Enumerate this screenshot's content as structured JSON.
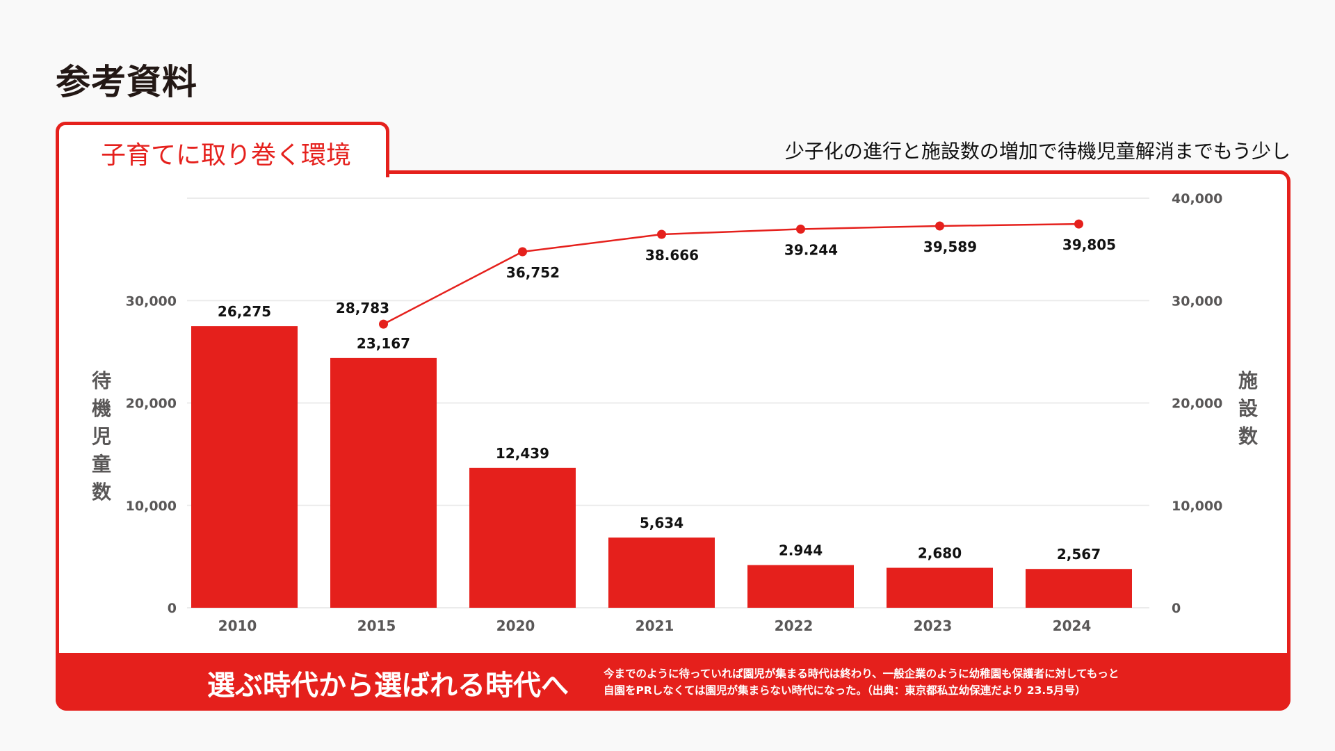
{
  "page": {
    "title": "参考資料",
    "tab_label": "子育てに取り巻く環境",
    "subtitle": "少子化の進行と施設数の増加で待機児童解消までもう少し"
  },
  "footer": {
    "headline": "選ぶ時代から選ばれる時代へ",
    "note_line1": "今までのように待っていれば園児が集まる時代は終わり、一般企業のように幼稚園も保護者に対してもっと",
    "note_line2": "自園をPRしなくては園児が集まらない時代になった。（出典：東京都私立幼保連だより 23.5月号）"
  },
  "colors": {
    "accent": "#e5201c",
    "text": "#231815",
    "axis_text": "#595757",
    "grid": "#ebebeb"
  },
  "chart_data": {
    "type": "bar+line",
    "categories": [
      "2010",
      "2015",
      "2020",
      "2021",
      "2022",
      "2023",
      "2024"
    ],
    "series": [
      {
        "name": "待機児童数",
        "type": "bar",
        "axis": "left",
        "values": [
          26275,
          23167,
          12439,
          5634,
          2944,
          2680,
          2567
        ],
        "labels": [
          "26,275",
          "23,167",
          "12,439",
          "5,634",
          "2.944",
          "2,680",
          "2,567"
        ]
      },
      {
        "name": "施設数",
        "type": "line",
        "axis": "right",
        "values": [
          null,
          28783,
          36752,
          38666,
          39244,
          39589,
          39805
        ],
        "labels": [
          null,
          "28,783",
          "36,752",
          "38.666",
          "39.244",
          "39,589",
          "39,805"
        ]
      }
    ],
    "left_axis": {
      "title": "待機児童数",
      "ylim": [
        0,
        40000
      ],
      "ticks": [
        "0",
        "10,000",
        "20,000",
        "30,000"
      ],
      "tick_values": [
        0,
        10000,
        20000,
        30000
      ]
    },
    "right_axis": {
      "title": "施設数",
      "ylim": [
        0,
        40000
      ],
      "ticks": [
        "0",
        "10,000",
        "20,000",
        "30,000",
        "40,000"
      ],
      "tick_values": [
        0,
        10000,
        20000,
        30000,
        40000
      ]
    },
    "grid": true,
    "legend": "none"
  }
}
